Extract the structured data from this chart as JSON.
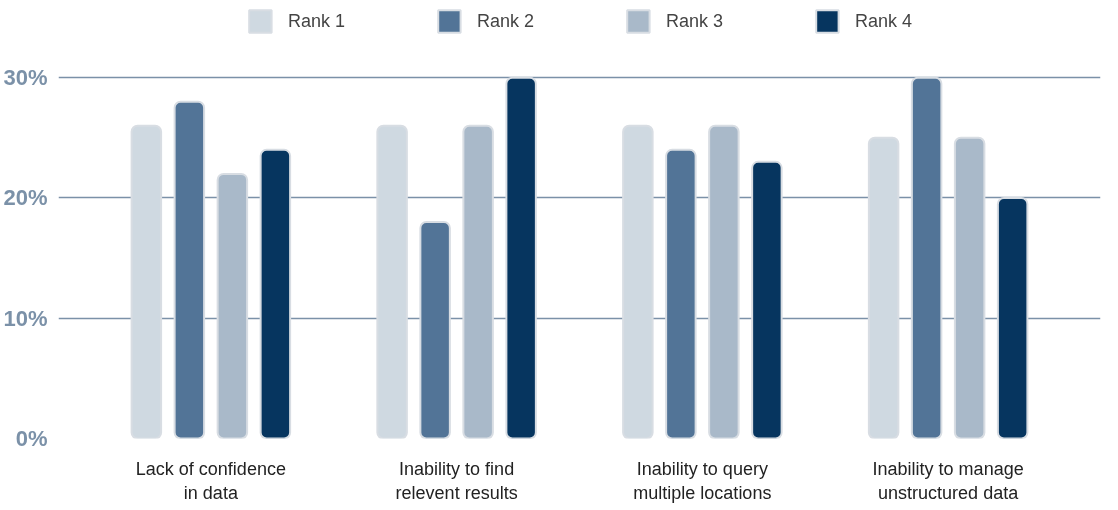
{
  "chart_data": {
    "type": "bar",
    "categories": [
      "Lack of confidence\nin data",
      "Inability to find\nrelevent results",
      "Inability to query\nmultiple locations",
      "Inability to manage\nunstructured data"
    ],
    "series": [
      {
        "name": "Rank 1",
        "color": "#cfd9e1",
        "values": [
          26,
          26,
          26,
          25
        ]
      },
      {
        "name": "Rank 2",
        "color": "#527497",
        "values": [
          28,
          18,
          24,
          30
        ]
      },
      {
        "name": "Rank 3",
        "color": "#a9b9c9",
        "values": [
          22,
          26,
          26,
          25
        ]
      },
      {
        "name": "Rank 4",
        "color": "#06355f",
        "values": [
          24,
          30,
          23,
          20
        ]
      }
    ],
    "ylim": [
      0,
      36
    ],
    "yticks": [
      {
        "value": 0,
        "label": "0%"
      },
      {
        "value": 10,
        "label": "10%"
      },
      {
        "value": 20,
        "label": "20%"
      },
      {
        "value": 30,
        "label": "30%"
      }
    ],
    "grid": "y",
    "legend": "top"
  }
}
